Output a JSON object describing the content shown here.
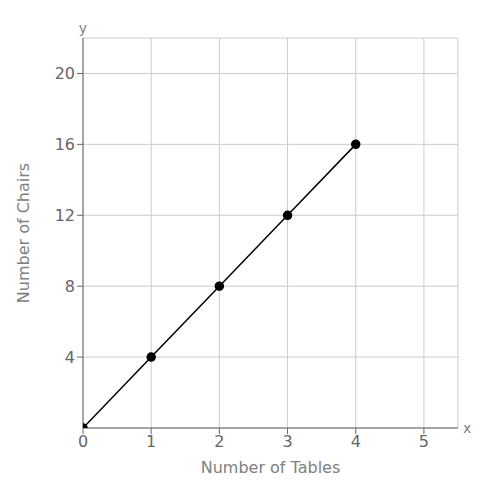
{
  "chart_data": {
    "type": "line",
    "x": [
      0,
      1,
      2,
      3,
      4
    ],
    "values": [
      0,
      4,
      8,
      12,
      16
    ],
    "x_label": "Number of Tables",
    "y_label": "Number of Chairs",
    "annotations": [
      "x",
      "y"
    ],
    "xlim": [
      0,
      5.5
    ],
    "ylim": [
      0,
      22
    ],
    "xticks": [
      0,
      1,
      2,
      3,
      4,
      5
    ],
    "yticks": [
      4,
      8,
      12,
      16,
      20
    ],
    "grid": true,
    "color": "#000000",
    "marker": "circle"
  }
}
